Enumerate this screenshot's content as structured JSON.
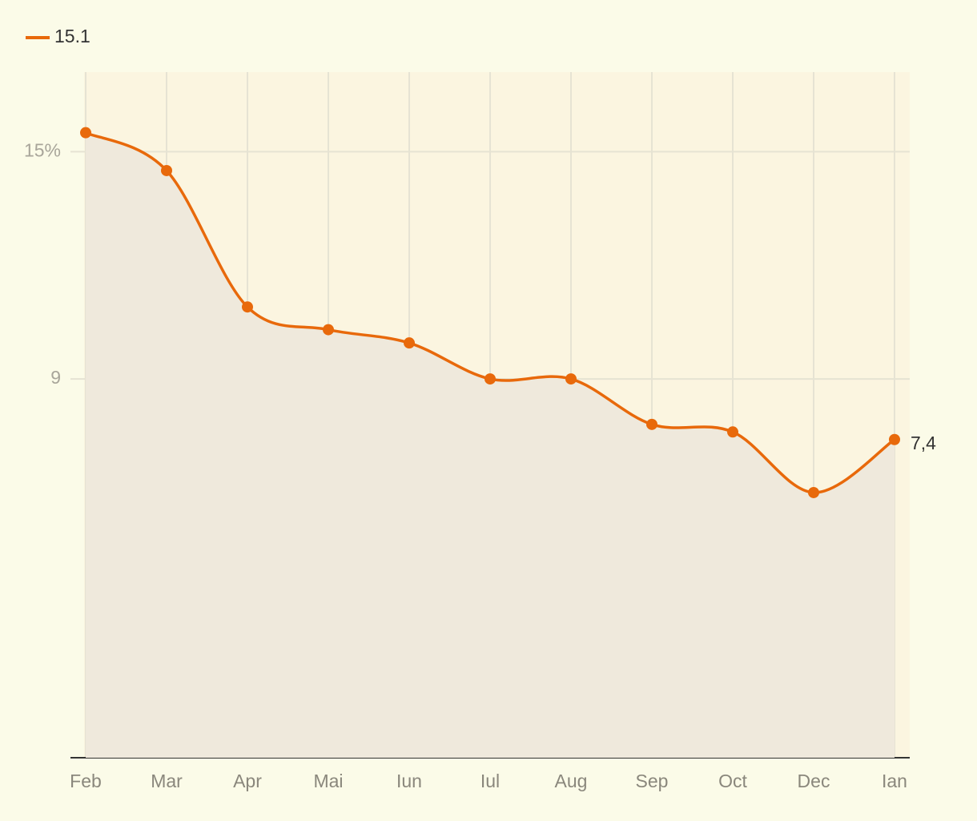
{
  "chart_data": {
    "type": "line",
    "categories": [
      "Feb",
      "Mar",
      "Apr",
      "Mai",
      "Iun",
      "Iul",
      "Aug",
      "Sep",
      "Oct",
      "Dec",
      "Ian"
    ],
    "series": [
      {
        "name": "15.1",
        "color": "#e8690b",
        "values": [
          15.5,
          14.5,
          10.9,
          10.3,
          9.95,
          9.0,
          9.0,
          7.8,
          7.6,
          6.0,
          7.4
        ],
        "value_labels": [
          null,
          null,
          null,
          null,
          null,
          null,
          null,
          null,
          null,
          null,
          "7,4"
        ]
      }
    ],
    "ylim": [
      -1,
      17.1
    ],
    "yticks": [
      {
        "value": 15,
        "label": "15%"
      },
      9
    ],
    "grid": true,
    "legend": "top-left"
  }
}
